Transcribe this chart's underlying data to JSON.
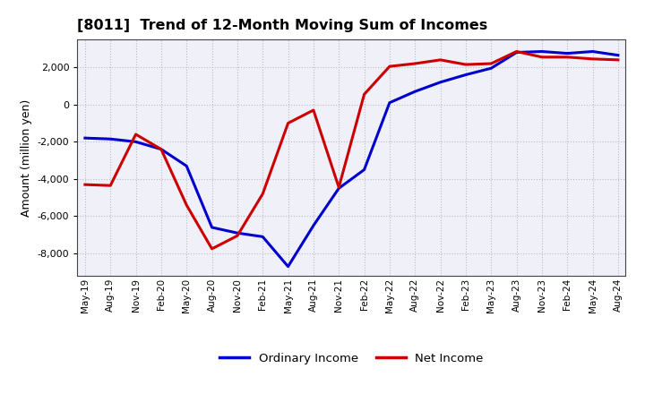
{
  "title": "[8011]  Trend of 12-Month Moving Sum of Incomes",
  "ylabel": "Amount (million yen)",
  "background_color": "#ffffff",
  "plot_bg_color": "#f0f0f8",
  "grid_color": "#bbbbcc",
  "x_labels": [
    "May-19",
    "Aug-19",
    "Nov-19",
    "Feb-20",
    "May-20",
    "Aug-20",
    "Nov-20",
    "Feb-21",
    "May-21",
    "Aug-21",
    "Nov-21",
    "Feb-22",
    "May-22",
    "Aug-22",
    "Nov-22",
    "Feb-23",
    "May-23",
    "Aug-23",
    "Nov-23",
    "Feb-24",
    "May-24",
    "Aug-24"
  ],
  "ordinary_income": [
    -1800,
    -1850,
    -2000,
    -2400,
    -3300,
    -6600,
    -6900,
    -7100,
    -8700,
    -6500,
    -4500,
    -3500,
    100,
    700,
    1200,
    1600,
    1950,
    2800,
    2850,
    2750,
    2850,
    2650
  ],
  "net_income": [
    -4300,
    -4350,
    -1600,
    -2400,
    -5400,
    -7750,
    -7050,
    -4800,
    -1000,
    -300,
    -4450,
    550,
    2050,
    2200,
    2400,
    2150,
    2200,
    2850,
    2550,
    2550,
    2450,
    2400
  ],
  "ordinary_color": "#0000cc",
  "net_color": "#cc0000",
  "line_width": 2.2,
  "ylim": [
    -9200,
    3500
  ],
  "yticks": [
    -8000,
    -6000,
    -4000,
    -2000,
    0,
    2000
  ],
  "legend_labels": [
    "Ordinary Income",
    "Net Income"
  ]
}
